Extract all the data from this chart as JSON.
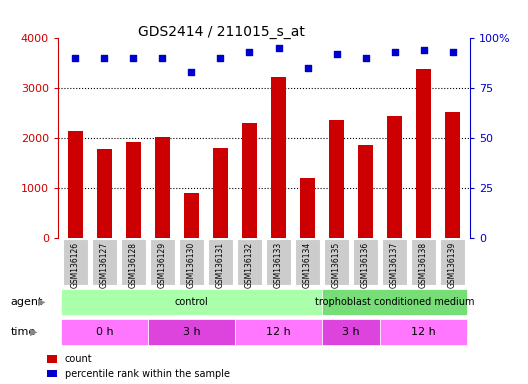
{
  "title": "GDS2414 / 211015_s_at",
  "samples": [
    "GSM136126",
    "GSM136127",
    "GSM136128",
    "GSM136129",
    "GSM136130",
    "GSM136131",
    "GSM136132",
    "GSM136133",
    "GSM136134",
    "GSM136135",
    "GSM136136",
    "GSM136137",
    "GSM136138",
    "GSM136139"
  ],
  "counts": [
    2150,
    1780,
    1920,
    2030,
    900,
    1800,
    2300,
    3220,
    1210,
    2370,
    1860,
    2440,
    3380,
    2520
  ],
  "percentile_ranks": [
    90,
    90,
    90,
    90,
    83,
    90,
    93,
    95,
    85,
    92,
    90,
    93,
    94,
    93
  ],
  "bar_color": "#cc0000",
  "dot_color": "#0000cc",
  "left_axis_color": "#cc0000",
  "right_axis_color": "#0000cc",
  "ylim_left": [
    0,
    4000
  ],
  "ylim_right": [
    0,
    100
  ],
  "yticks_left": [
    0,
    1000,
    2000,
    3000,
    4000
  ],
  "ytick_labels_left": [
    "0",
    "1000",
    "2000",
    "3000",
    "4000"
  ],
  "yticks_right": [
    0,
    25,
    50,
    75,
    100
  ],
  "ytick_labels_right": [
    "0",
    "25",
    "50",
    "75",
    "100%"
  ],
  "agent_groups": [
    {
      "label": "control",
      "start": 0,
      "end": 9,
      "color": "#aaffaa"
    },
    {
      "label": "trophoblast conditioned medium",
      "start": 9,
      "end": 14,
      "color": "#77dd77"
    }
  ],
  "time_groups": [
    {
      "label": "0 h",
      "start": 0,
      "end": 3,
      "color": "#ff77ff"
    },
    {
      "label": "3 h",
      "start": 3,
      "end": 6,
      "color": "#dd44dd"
    },
    {
      "label": "12 h",
      "start": 6,
      "end": 9,
      "color": "#ff77ff"
    },
    {
      "label": "3 h",
      "start": 9,
      "end": 11,
      "color": "#dd44dd"
    },
    {
      "label": "12 h",
      "start": 11,
      "end": 14,
      "color": "#ff77ff"
    }
  ],
  "legend_count_color": "#cc0000",
  "legend_dot_color": "#0000cc",
  "agent_label": "agent",
  "time_label": "time",
  "tick_label_bg": "#cccccc"
}
